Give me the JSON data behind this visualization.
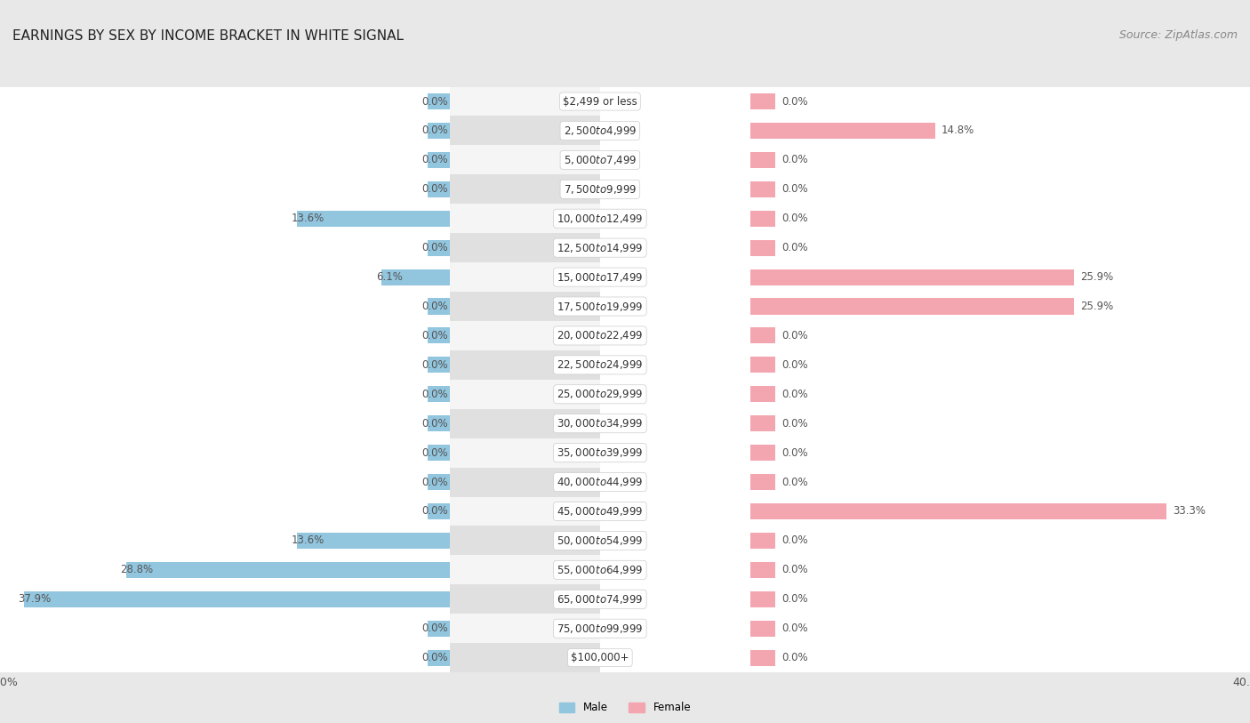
{
  "title": "EARNINGS BY SEX BY INCOME BRACKET IN WHITE SIGNAL",
  "source": "Source: ZipAtlas.com",
  "categories": [
    "$2,499 or less",
    "$2,500 to $4,999",
    "$5,000 to $7,499",
    "$7,500 to $9,999",
    "$10,000 to $12,499",
    "$12,500 to $14,999",
    "$15,000 to $17,499",
    "$17,500 to $19,999",
    "$20,000 to $22,499",
    "$22,500 to $24,999",
    "$25,000 to $29,999",
    "$30,000 to $34,999",
    "$35,000 to $39,999",
    "$40,000 to $44,999",
    "$45,000 to $49,999",
    "$50,000 to $54,999",
    "$55,000 to $64,999",
    "$65,000 to $74,999",
    "$75,000 to $99,999",
    "$100,000+"
  ],
  "male_values": [
    0.0,
    0.0,
    0.0,
    0.0,
    13.6,
    0.0,
    6.1,
    0.0,
    0.0,
    0.0,
    0.0,
    0.0,
    0.0,
    0.0,
    0.0,
    13.6,
    28.8,
    37.9,
    0.0,
    0.0
  ],
  "female_values": [
    0.0,
    14.8,
    0.0,
    0.0,
    0.0,
    0.0,
    25.9,
    25.9,
    0.0,
    0.0,
    0.0,
    0.0,
    0.0,
    0.0,
    33.3,
    0.0,
    0.0,
    0.0,
    0.0,
    0.0
  ],
  "male_color": "#92c5de",
  "female_color": "#f4a6b0",
  "male_label": "Male",
  "female_label": "Female",
  "xlim": 40.0,
  "min_bar": 2.0,
  "bg_color": "#e8e8e8",
  "row_color_even": "#f5f5f5",
  "row_color_odd": "#e0e0e0",
  "title_fontsize": 11,
  "source_fontsize": 9,
  "label_fontsize": 8.5,
  "cat_fontsize": 8.5,
  "tick_fontsize": 9
}
